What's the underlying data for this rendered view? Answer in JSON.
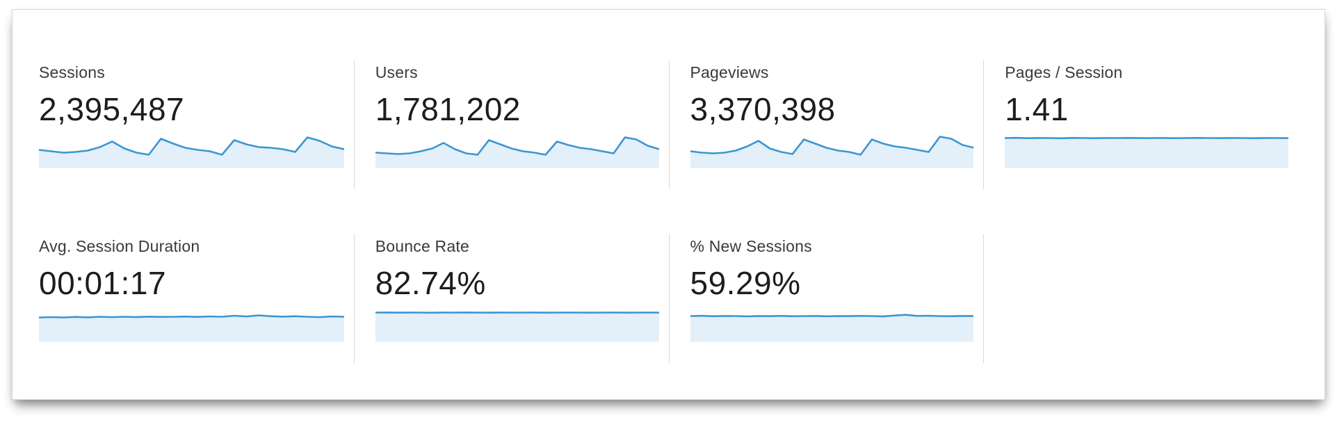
{
  "panel": {
    "name": "analytics-metrics-summary"
  },
  "colors": {
    "spark_line": "#3c96d2",
    "spark_fill": "#e3eff9",
    "divider": "#d9d9d9",
    "label_text": "#3a3a3a",
    "value_text": "#1d1d1d",
    "panel_border": "#d6d6d6"
  },
  "metrics": [
    {
      "id": "sessions",
      "label": "Sessions",
      "value": "2,395,487",
      "spark": [
        26,
        24,
        22,
        23,
        25,
        30,
        38,
        28,
        22,
        19,
        42,
        35,
        29,
        26,
        24,
        19,
        40,
        34,
        30,
        29,
        27,
        23,
        44,
        39,
        31,
        27
      ]
    },
    {
      "id": "users",
      "label": "Users",
      "value": "1,781,202",
      "spark": [
        22,
        21,
        20,
        21,
        24,
        28,
        36,
        27,
        21,
        19,
        40,
        34,
        28,
        24,
        22,
        19,
        38,
        33,
        29,
        27,
        24,
        21,
        44,
        41,
        32,
        27
      ]
    },
    {
      "id": "pageviews",
      "label": "Pageviews",
      "value": "3,370,398",
      "spark": [
        24,
        22,
        21,
        22,
        25,
        31,
        39,
        28,
        23,
        20,
        41,
        35,
        29,
        25,
        23,
        19,
        41,
        35,
        31,
        29,
        26,
        23,
        45,
        42,
        33,
        29
      ]
    },
    {
      "id": "pages-per-session",
      "label": "Pages / Session",
      "value": "1.41",
      "spark": [
        43,
        43.3,
        42.8,
        43.1,
        43,
        42.7,
        43.2,
        43,
        42.8,
        43.1,
        43,
        43.2,
        42.9,
        43,
        43.1,
        42.8,
        43,
        43.2,
        43,
        42.9,
        43.1,
        43,
        42.8,
        43.1,
        43,
        42.9
      ]
    },
    {
      "id": "avg-session-duration",
      "label": "Avg. Session Duration",
      "value": "00:01:17",
      "spark": [
        35,
        35.5,
        35,
        35.8,
        35.2,
        36,
        35.5,
        36,
        35.6,
        36.2,
        35.8,
        36,
        36.3,
        35.8,
        36.5,
        36,
        37.5,
        36.5,
        38,
        36.8,
        36.2,
        36.8,
        36,
        35.5,
        36.5,
        36
      ]
    },
    {
      "id": "bounce-rate",
      "label": "Bounce Rate",
      "value": "82.74%",
      "spark": [
        42,
        42.2,
        41.9,
        42.1,
        42,
        41.8,
        42.1,
        42,
        42.2,
        42,
        41.9,
        42.1,
        42,
        42,
        42.1,
        41.9,
        42,
        42.1,
        42,
        41.9,
        42,
        42.1,
        41.9,
        42,
        42.1,
        42
      ]
    },
    {
      "id": "percent-new-sessions",
      "label": "% New Sessions",
      "value": "59.29%",
      "spark": [
        37,
        37.4,
        36.8,
        37.2,
        37,
        36.6,
        37.1,
        36.9,
        37.3,
        36.8,
        37,
        37.2,
        36.7,
        37.1,
        36.9,
        37.3,
        37,
        36.6,
        37.8,
        38.8,
        37.2,
        37.5,
        37,
        36.8,
        37.2,
        37
      ]
    }
  ],
  "chart_data": [
    {
      "type": "area",
      "title": "Sessions sparkline",
      "series": [
        {
          "name": "Sessions",
          "values": [
            26,
            24,
            22,
            23,
            25,
            30,
            38,
            28,
            22,
            19,
            42,
            35,
            29,
            26,
            24,
            19,
            40,
            34,
            30,
            29,
            27,
            23,
            44,
            39,
            31,
            27
          ]
        }
      ],
      "xlabel": "",
      "ylabel": "",
      "legend": "none",
      "grid": false
    },
    {
      "type": "area",
      "title": "Users sparkline",
      "series": [
        {
          "name": "Users",
          "values": [
            22,
            21,
            20,
            21,
            24,
            28,
            36,
            27,
            21,
            19,
            40,
            34,
            28,
            24,
            22,
            19,
            38,
            33,
            29,
            27,
            24,
            21,
            44,
            41,
            32,
            27
          ]
        }
      ],
      "xlabel": "",
      "ylabel": "",
      "legend": "none",
      "grid": false
    },
    {
      "type": "area",
      "title": "Pageviews sparkline",
      "series": [
        {
          "name": "Pageviews",
          "values": [
            24,
            22,
            21,
            22,
            25,
            31,
            39,
            28,
            23,
            20,
            41,
            35,
            29,
            25,
            23,
            19,
            41,
            35,
            31,
            29,
            26,
            23,
            45,
            42,
            33,
            29
          ]
        }
      ],
      "xlabel": "",
      "ylabel": "",
      "legend": "none",
      "grid": false
    },
    {
      "type": "area",
      "title": "Pages / Session sparkline",
      "series": [
        {
          "name": "Pages / Session",
          "values": [
            43,
            43.3,
            42.8,
            43.1,
            43,
            42.7,
            43.2,
            43,
            42.8,
            43.1,
            43,
            43.2,
            42.9,
            43,
            43.1,
            42.8,
            43,
            43.2,
            43,
            42.9,
            43.1,
            43,
            42.8,
            43.1,
            43,
            42.9
          ]
        }
      ],
      "xlabel": "",
      "ylabel": "",
      "legend": "none",
      "grid": false
    },
    {
      "type": "area",
      "title": "Avg. Session Duration sparkline",
      "series": [
        {
          "name": "Avg. Session Duration",
          "values": [
            35,
            35.5,
            35,
            35.8,
            35.2,
            36,
            35.5,
            36,
            35.6,
            36.2,
            35.8,
            36,
            36.3,
            35.8,
            36.5,
            36,
            37.5,
            36.5,
            38,
            36.8,
            36.2,
            36.8,
            36,
            35.5,
            36.5,
            36
          ]
        }
      ],
      "xlabel": "",
      "ylabel": "",
      "legend": "none",
      "grid": false
    },
    {
      "type": "area",
      "title": "Bounce Rate sparkline",
      "series": [
        {
          "name": "Bounce Rate",
          "values": [
            42,
            42.2,
            41.9,
            42.1,
            42,
            41.8,
            42.1,
            42,
            42.2,
            42,
            41.9,
            42.1,
            42,
            42,
            42.1,
            41.9,
            42,
            42.1,
            42,
            41.9,
            42,
            42.1,
            41.9,
            42,
            42.1,
            42
          ]
        }
      ],
      "xlabel": "",
      "ylabel": "",
      "legend": "none",
      "grid": false
    },
    {
      "type": "area",
      "title": "% New Sessions sparkline",
      "series": [
        {
          "name": "% New Sessions",
          "values": [
            37,
            37.4,
            36.8,
            37.2,
            37,
            36.6,
            37.1,
            36.9,
            37.3,
            36.8,
            37,
            37.2,
            36.7,
            37.1,
            36.9,
            37.3,
            37,
            36.6,
            37.8,
            38.8,
            37.2,
            37.5,
            37,
            36.8,
            37.2,
            37
          ]
        }
      ],
      "xlabel": "",
      "ylabel": "",
      "legend": "none",
      "grid": false
    }
  ]
}
